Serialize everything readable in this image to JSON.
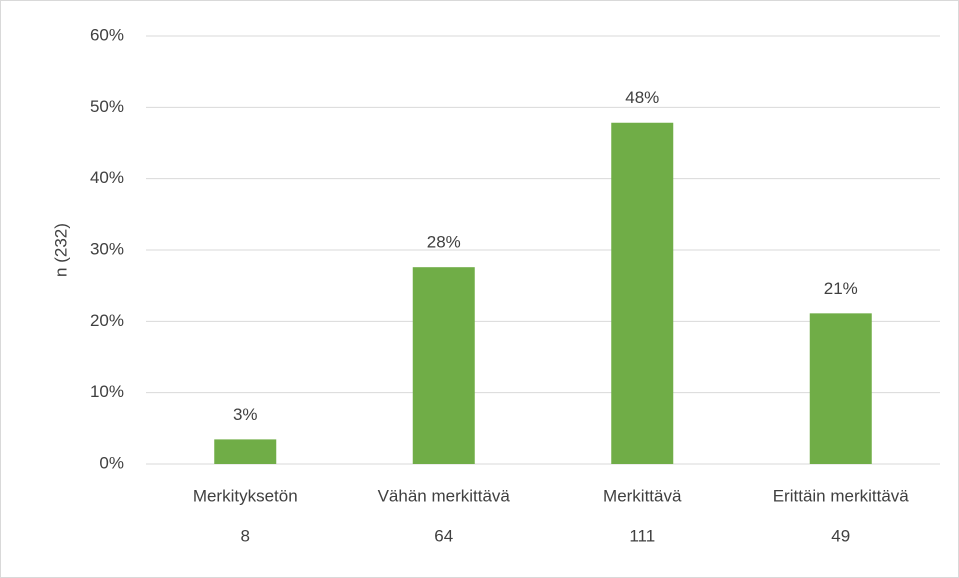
{
  "chart_data": {
    "type": "bar",
    "ylabel": "n (232)",
    "categories": [
      "Merkityksetön",
      "Vähän merkittävä",
      "Merkittävä",
      "Erittäin merkittävä"
    ],
    "category_counts": [
      8,
      64,
      111,
      49
    ],
    "values": [
      3.45,
      27.59,
      47.84,
      21.12
    ],
    "value_labels": [
      "3%",
      "28%",
      "48%",
      "21%"
    ],
    "color": "#70ad47",
    "ylim": [
      0,
      60
    ],
    "yticks": [
      {
        "value": 0,
        "label": "0%"
      },
      {
        "value": 10,
        "label": "10%"
      },
      {
        "value": 20,
        "label": "20%"
      },
      {
        "value": 30,
        "label": "30%"
      },
      {
        "value": 40,
        "label": "40%"
      },
      {
        "value": 50,
        "label": "50%"
      },
      {
        "value": 60,
        "label": "60%"
      }
    ],
    "grid": true
  }
}
